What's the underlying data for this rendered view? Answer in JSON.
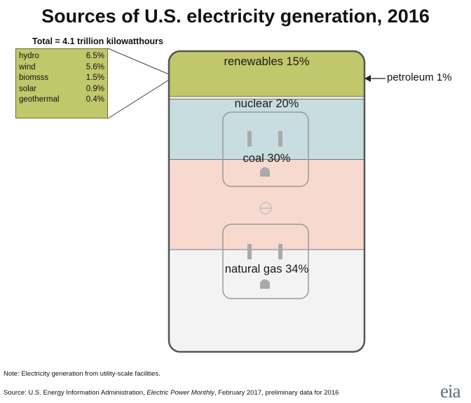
{
  "title": "Sources of U.S. electricity generation, 2016",
  "subtitle": "Total = 4.1 trillion kilowatthours",
  "chart_data": {
    "type": "stacked-area",
    "title": "Sources of U.S. electricity generation, 2016",
    "subtitle": "Total = 4.1 trillion kilowatthours",
    "unit": "%",
    "series": [
      {
        "name": "renewables",
        "value": 15,
        "label": "renewables 15%",
        "color": "#c1c76b"
      },
      {
        "name": "petroleum",
        "value": 1,
        "label": "petroleum 1%",
        "color": "#e6ebcf"
      },
      {
        "name": "nuclear",
        "value": 20,
        "label": "nuclear 20%",
        "color": "#c7dde0"
      },
      {
        "name": "coal",
        "value": 30,
        "label": "coal 30%",
        "color": "#f7d9d0"
      },
      {
        "name": "natural gas",
        "value": 34,
        "label": "natural gas 34%",
        "color": "#f3f3f3"
      }
    ],
    "renewables_breakdown": [
      {
        "name": "hydro",
        "value": 6.5,
        "label": "6.5%"
      },
      {
        "name": "wind",
        "value": 5.6,
        "label": "5.6%"
      },
      {
        "name": "biomsss",
        "value": 1.5,
        "label": "1.5%"
      },
      {
        "name": "solar",
        "value": 0.9,
        "label": "0.9%"
      },
      {
        "name": "geothermal",
        "value": 0.4,
        "label": "0.4%"
      }
    ]
  },
  "footer": {
    "note": "Note: Electricity generation from utility-scale facilities.",
    "source_prefix": "Source: U.S. Energy Information Administration, ",
    "source_italic": "Electric Power Monthly",
    "source_suffix": ", February 2017, preliminary data for 2016",
    "logo": "eia"
  },
  "colors": {
    "outline": "#555555",
    "outlet_stroke": "#999999",
    "slot_fill": "#aaaaaa"
  }
}
